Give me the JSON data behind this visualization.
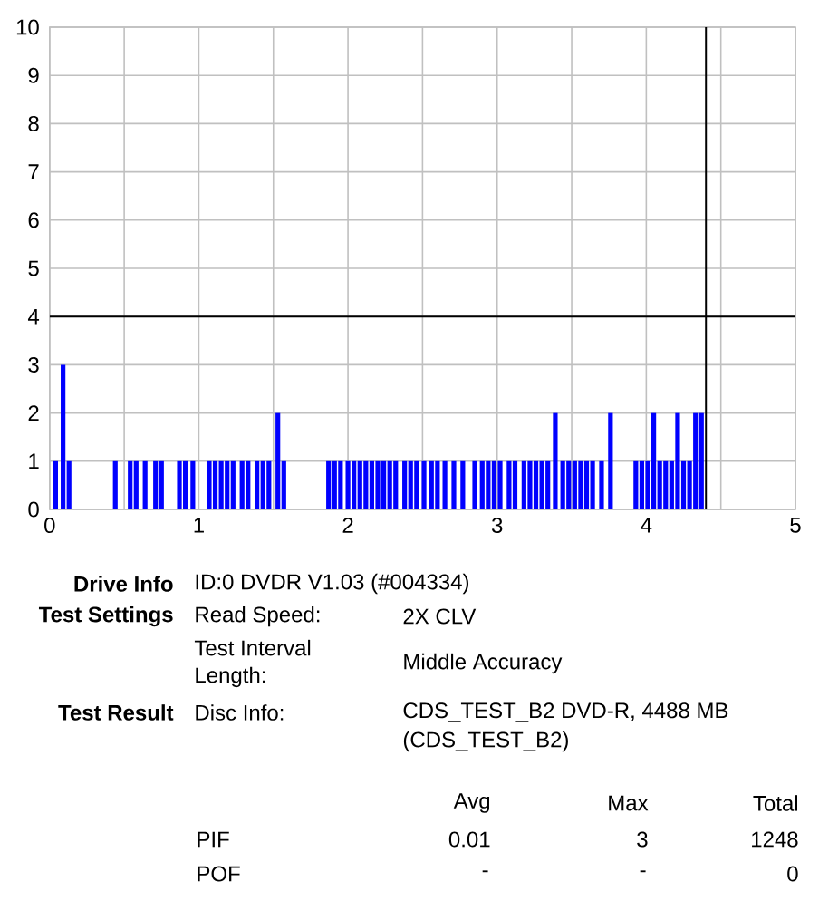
{
  "chart_data": {
    "type": "bar",
    "x": [
      0.04,
      0.09,
      0.13,
      0.44,
      0.54,
      0.58,
      0.64,
      0.71,
      0.75,
      0.87,
      0.91,
      0.96,
      1.07,
      1.11,
      1.15,
      1.19,
      1.23,
      1.29,
      1.33,
      1.39,
      1.43,
      1.47,
      1.53,
      1.57,
      1.87,
      1.91,
      1.95,
      2.0,
      2.04,
      2.08,
      2.12,
      2.16,
      2.2,
      2.24,
      2.28,
      2.32,
      2.38,
      2.42,
      2.46,
      2.51,
      2.56,
      2.6,
      2.65,
      2.71,
      2.77,
      2.85,
      2.9,
      2.94,
      2.98,
      3.02,
      3.08,
      3.12,
      3.18,
      3.22,
      3.26,
      3.3,
      3.34,
      3.39,
      3.44,
      3.48,
      3.52,
      3.56,
      3.6,
      3.64,
      3.7,
      3.76,
      3.93,
      3.97,
      4.01,
      4.05,
      4.09,
      4.13,
      4.17,
      4.21,
      4.25,
      4.29,
      4.33,
      4.37
    ],
    "values": [
      1,
      3,
      1,
      1,
      1,
      1,
      1,
      1,
      1,
      1,
      1,
      1,
      1,
      1,
      1,
      1,
      1,
      1,
      1,
      1,
      1,
      1,
      2,
      1,
      1,
      1,
      1,
      1,
      1,
      1,
      1,
      1,
      1,
      1,
      1,
      1,
      1,
      1,
      1,
      1,
      1,
      1,
      1,
      1,
      1,
      1,
      1,
      1,
      1,
      1,
      1,
      1,
      1,
      1,
      1,
      1,
      1,
      2,
      1,
      1,
      1,
      1,
      1,
      1,
      1,
      2,
      1,
      1,
      1,
      2,
      1,
      1,
      1,
      2,
      1,
      1,
      2,
      2
    ],
    "color": "#0000ff",
    "xlim": [
      0,
      5
    ],
    "ylim": [
      0,
      10
    ],
    "xticks": [
      0,
      {
        "value": 0.5,
        "label": null
      },
      1,
      {
        "value": 1.5,
        "label": null
      },
      2,
      {
        "value": 2.5,
        "label": null
      },
      3,
      {
        "value": 3.5,
        "label": null
      },
      4,
      {
        "value": 4.5,
        "label": null
      },
      5
    ],
    "yticks": [
      0,
      1,
      2,
      3,
      4,
      5,
      6,
      7,
      8,
      9,
      10
    ],
    "grid": true,
    "ref_lines": [
      {
        "axis": "y",
        "value": 4,
        "color": "#000000"
      },
      {
        "axis": "x",
        "value": 4.4,
        "color": "#000000"
      }
    ],
    "annotations": [
      "Drive Info",
      "ID:0 DVDR V1.03 (#004334)",
      "Test Settings",
      "Read Speed:",
      "2X CLV",
      "Test Interval Length:",
      "Middle Accuracy",
      "Test Result",
      "Disc Info:",
      "CDS_TEST_B2 DVD-R, 4488 MB",
      "(CDS_TEST_B2)",
      "Avg",
      "Max",
      "Total",
      "PIF",
      "0.01",
      "3",
      "1248",
      "POF",
      "-",
      "-",
      "0"
    ]
  }
}
